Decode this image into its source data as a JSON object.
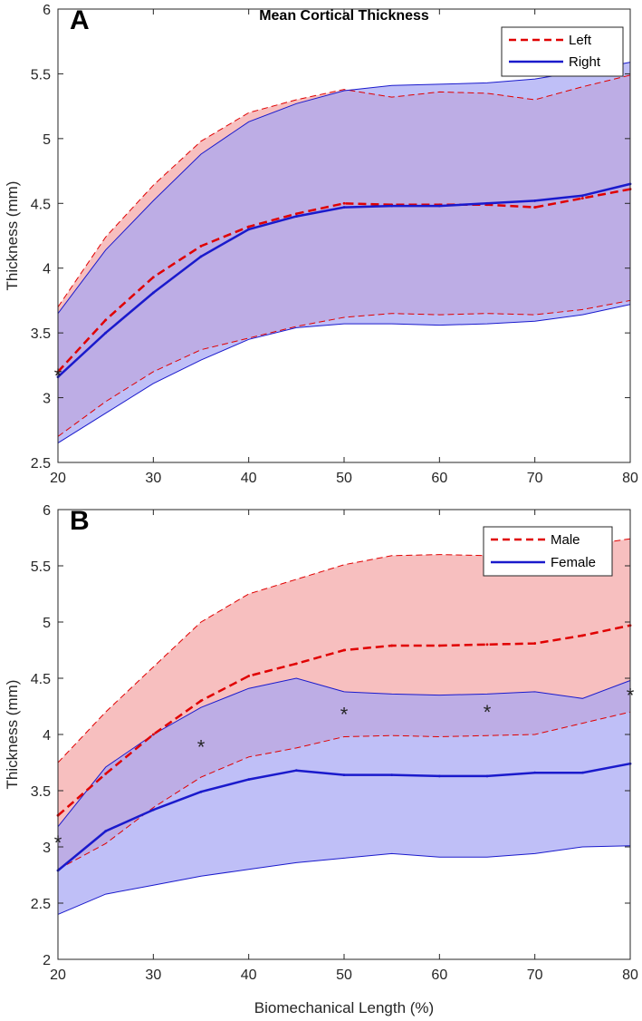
{
  "chart_data": [
    {
      "type": "line",
      "panel_label": "A",
      "title": "Mean Cortical Thickness",
      "xlabel": "",
      "ylabel": "Thickness (mm)",
      "xlim": [
        20,
        80
      ],
      "ylim": [
        2.5,
        6
      ],
      "xticks": [
        "20",
        "30",
        "40",
        "50",
        "60",
        "70",
        "80"
      ],
      "yticks": [
        "2.5",
        "3",
        "3.5",
        "4",
        "4.5",
        "5",
        "5.5",
        "6"
      ],
      "x": [
        20,
        25,
        30,
        35,
        40,
        45,
        50,
        55,
        60,
        65,
        70,
        75,
        80
      ],
      "legend": {
        "placement": "top-right"
      },
      "series": [
        {
          "name": "Left",
          "color": "#e00000",
          "band_color": "#f4a6a6",
          "dash": true,
          "mean": [
            3.2,
            3.6,
            3.93,
            4.17,
            4.32,
            4.42,
            4.5,
            4.49,
            4.49,
            4.49,
            4.47,
            4.54,
            4.61
          ],
          "upper": [
            3.7,
            4.24,
            4.64,
            4.98,
            5.2,
            5.3,
            5.38,
            5.32,
            5.36,
            5.35,
            5.3,
            5.4,
            5.49
          ],
          "lower": [
            2.7,
            2.97,
            3.2,
            3.37,
            3.46,
            3.55,
            3.62,
            3.65,
            3.64,
            3.65,
            3.64,
            3.68,
            3.75
          ]
        },
        {
          "name": "Right",
          "color": "#1a1acc",
          "band_color": "#a6a6f4",
          "dash": false,
          "mean": [
            3.16,
            3.5,
            3.81,
            4.09,
            4.3,
            4.4,
            4.47,
            4.48,
            4.48,
            4.5,
            4.52,
            4.56,
            4.65
          ],
          "upper": [
            3.65,
            4.14,
            4.52,
            4.88,
            5.13,
            5.27,
            5.37,
            5.41,
            5.42,
            5.43,
            5.46,
            5.52,
            5.59
          ],
          "lower": [
            2.65,
            2.88,
            3.11,
            3.29,
            3.45,
            3.54,
            3.57,
            3.57,
            3.56,
            3.57,
            3.59,
            3.64,
            3.72
          ]
        }
      ],
      "markers": {
        "symbol": "*",
        "points": [
          [
            20,
            3.18
          ]
        ]
      }
    },
    {
      "type": "line",
      "panel_label": "B",
      "title": "",
      "xlabel": "Biomechanical Length (%)",
      "ylabel": "Thickness (mm)",
      "xlim": [
        20,
        80
      ],
      "ylim": [
        2,
        6
      ],
      "xticks": [
        "20",
        "30",
        "40",
        "50",
        "60",
        "70",
        "80"
      ],
      "yticks": [
        "2",
        "2.5",
        "3",
        "3.5",
        "4",
        "4.5",
        "5",
        "5.5",
        "6"
      ],
      "x": [
        20,
        25,
        30,
        35,
        40,
        45,
        50,
        55,
        60,
        65,
        70,
        75,
        80
      ],
      "legend": {
        "placement": "top-right"
      },
      "series": [
        {
          "name": "Male",
          "color": "#e00000",
          "band_color": "#f4a6a6",
          "dash": true,
          "mean": [
            3.28,
            3.65,
            4.0,
            4.3,
            4.52,
            4.63,
            4.75,
            4.79,
            4.79,
            4.8,
            4.81,
            4.88,
            4.97
          ],
          "upper": [
            3.75,
            4.2,
            4.6,
            5.0,
            5.25,
            5.38,
            5.51,
            5.59,
            5.6,
            5.59,
            5.62,
            5.68,
            5.74
          ],
          "lower": [
            2.8,
            3.03,
            3.35,
            3.62,
            3.8,
            3.88,
            3.98,
            3.99,
            3.98,
            3.99,
            4.0,
            4.1,
            4.2
          ]
        },
        {
          "name": "Female",
          "color": "#1a1acc",
          "band_color": "#a6a6f4",
          "dash": false,
          "mean": [
            2.79,
            3.14,
            3.33,
            3.49,
            3.6,
            3.68,
            3.64,
            3.64,
            3.63,
            3.63,
            3.66,
            3.66,
            3.74
          ],
          "upper": [
            3.18,
            3.71,
            4.0,
            4.24,
            4.41,
            4.5,
            4.38,
            4.36,
            4.35,
            4.36,
            4.38,
            4.32,
            4.48
          ],
          "lower": [
            2.4,
            2.58,
            2.66,
            2.74,
            2.8,
            2.86,
            2.9,
            2.94,
            2.91,
            2.91,
            2.94,
            3.0,
            3.01
          ]
        }
      ],
      "markers": {
        "symbol": "*",
        "points": [
          [
            20,
            3.05
          ],
          [
            35,
            3.9
          ],
          [
            50,
            4.19
          ],
          [
            65,
            4.21
          ],
          [
            80,
            4.36
          ]
        ]
      }
    }
  ]
}
